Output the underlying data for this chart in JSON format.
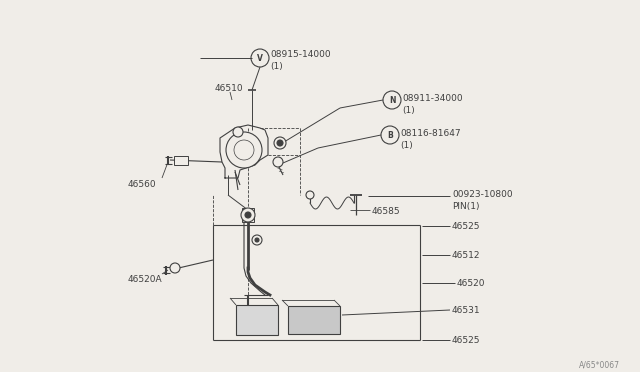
{
  "bg_color": "#f0ede8",
  "line_color": "#404040",
  "lw": 0.8,
  "watermark": "A/65*0067",
  "bracket_label": "46510",
  "pushrod_label": "46560",
  "pedal_label": "46520A",
  "spring_label": "46585",
  "top_box_label1": "46525",
  "mid_box_label": "46512",
  "right_box_label": "46520",
  "pad_label": "46531",
  "bot_box_label": "46525",
  "v_part": "08915-14000",
  "v_sub": "(1)",
  "n_part": "08911-34000",
  "n_sub": "(1)",
  "b_part": "08116-81647",
  "b_sub": "(1)",
  "pin_part": "00923-10800",
  "pin_sub": "PIN(1)"
}
